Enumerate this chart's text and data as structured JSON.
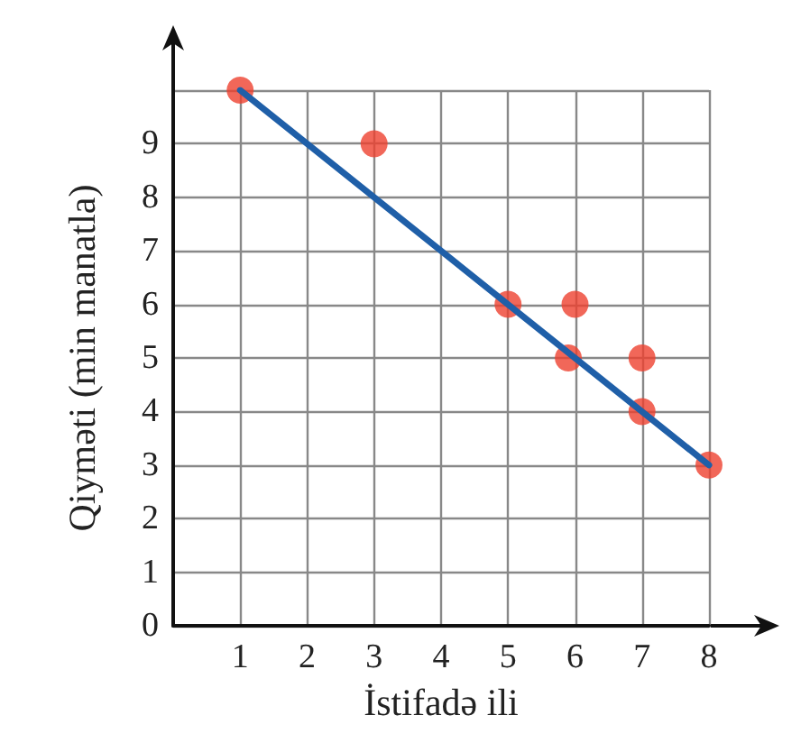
{
  "chart_data": {
    "type": "scatter",
    "xlabel": "İstifadə ili",
    "ylabel": "Qiyməti (min manatla)",
    "x": [
      1,
      3,
      5,
      5.9,
      6,
      7,
      7,
      8
    ],
    "series": [
      {
        "color": "#ee4130",
        "values": [
          10,
          9,
          6,
          5,
          6,
          5,
          4,
          3
        ],
        "marker": "circle"
      },
      {
        "type": "line",
        "color": "#1f5fa8",
        "x": [
          1,
          8
        ],
        "values": [
          10,
          3
        ],
        "marker": "none",
        "line_style": "solid"
      }
    ],
    "xlim": [
      0,
      8
    ],
    "xticks": [
      1,
      2,
      3,
      4,
      5,
      6,
      7,
      8
    ],
    "ylim": [
      0,
      10
    ],
    "yticks": [
      0,
      1,
      2,
      3,
      4,
      5,
      6,
      7,
      8,
      9,
      {
        "value": 10,
        "label": null
      }
    ],
    "grid": true
  }
}
